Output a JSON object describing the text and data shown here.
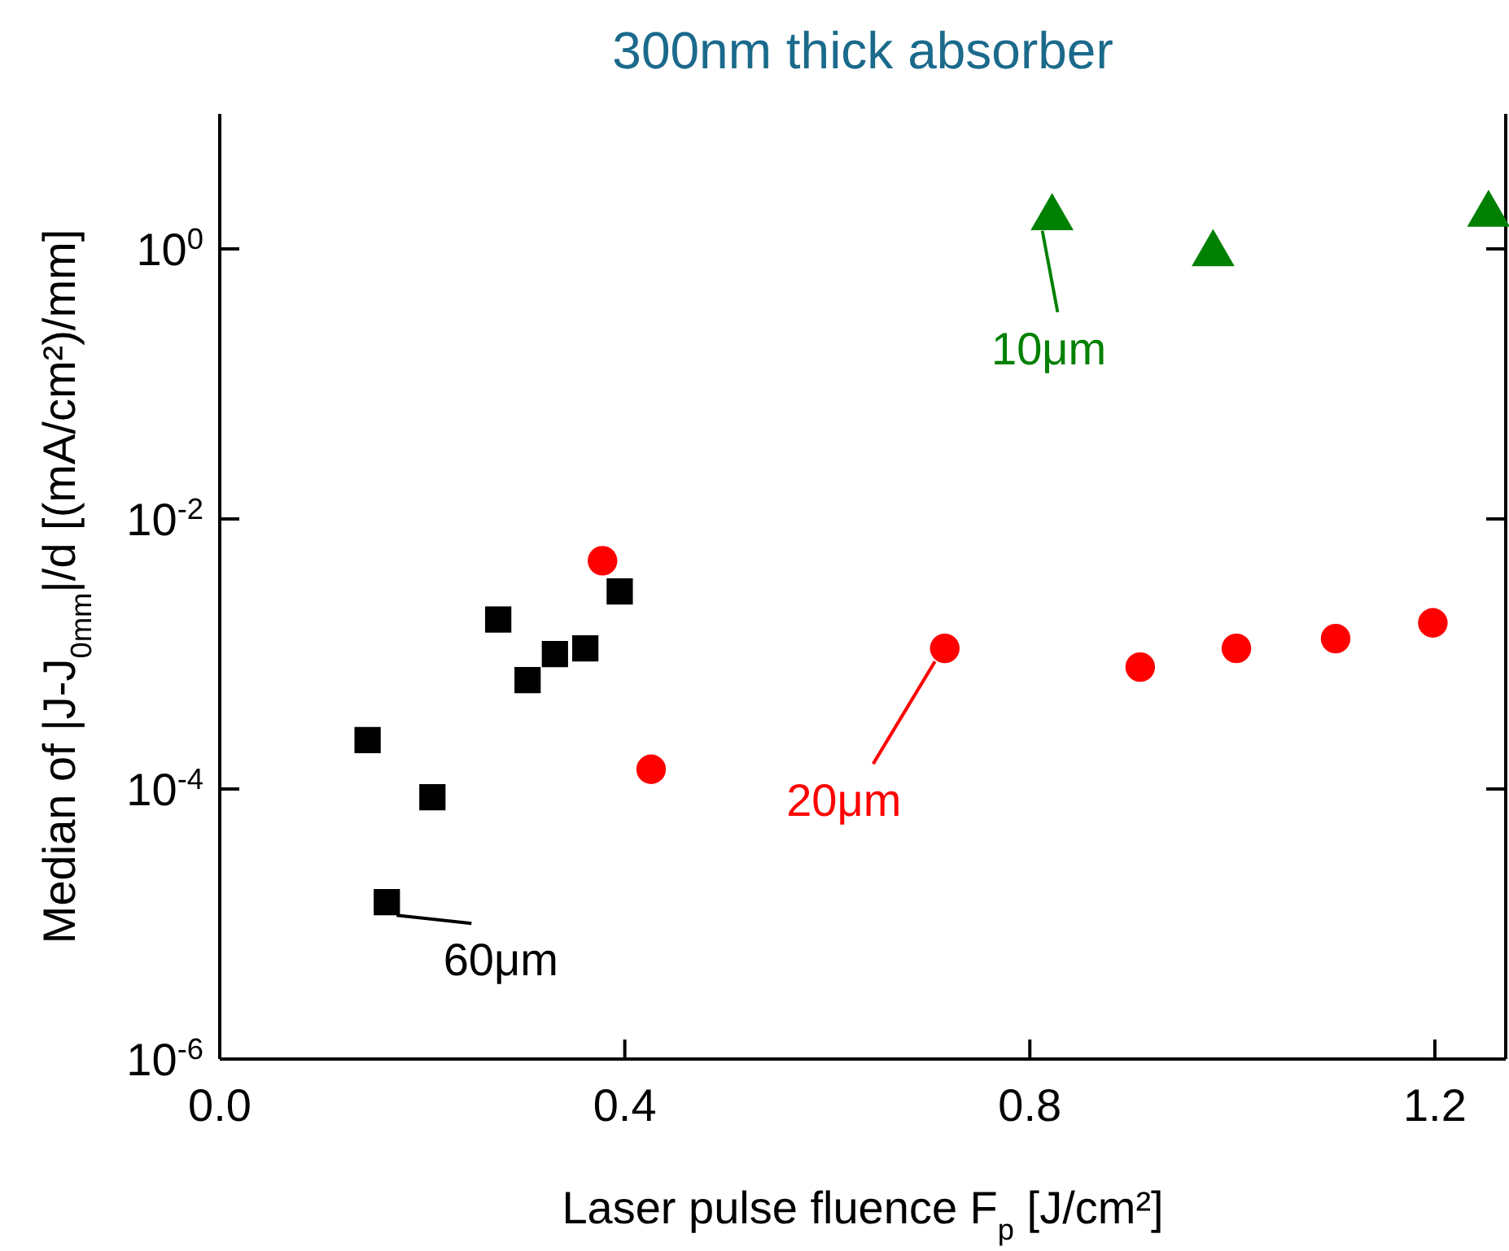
{
  "chart_data": {
    "type": "scatter",
    "title": "300nm thick absorber",
    "xlabel": "Laser pulse fluence F$_{p}$ [J/cm²]",
    "ylabel": "Median of |J-J$_{0mm}$|/d [(mA/cm²)/mm]",
    "log": "y",
    "xlim": [
      0,
      1.27
    ],
    "xticks": [
      {
        "value": 0,
        "label": "0.0"
      },
      {
        "value": 0.4,
        "label": "0.4"
      },
      {
        "value": 0.8,
        "label": "0.8"
      },
      {
        "value": 1.2,
        "label": "1.2"
      }
    ],
    "ylim": [
      1e-06,
      10
    ],
    "yticks": [
      {
        "value": 1e-06,
        "label": "10$^{-6}$"
      },
      {
        "value": 0.0001,
        "label": "10$^{-4}$"
      },
      {
        "value": 0.01,
        "label": "10$^{-2}$"
      },
      {
        "value": 1,
        "label": "10$^{0}$"
      }
    ],
    "grid": false,
    "series": [
      {
        "color": "#000000",
        "marker": "square",
        "x": [
          0.146,
          0.165,
          0.21,
          0.275,
          0.304,
          0.331,
          0.361,
          0.395
        ],
        "values": [
          0.00023,
          1.45e-05,
          8.7e-05,
          0.0018,
          0.00064,
          0.001,
          0.0011,
          0.0029
        ]
      },
      {
        "color": "#ff0000",
        "marker": "circle",
        "x": [
          0.378,
          0.426,
          0.716,
          0.909,
          1.004,
          1.102,
          1.198
        ],
        "values": [
          0.0049,
          0.00014,
          0.0011,
          0.0008,
          0.0011,
          0.0013,
          0.0017
        ]
      },
      {
        "color": "#008000",
        "marker": "triangle",
        "x": [
          0.822,
          0.981,
          1.253
        ],
        "values": [
          1.7,
          0.92,
          1.8
        ]
      }
    ],
    "annotations": [
      {
        "text": "60μm",
        "x": 0.165,
        "y": 1.45e-05
      },
      {
        "text": "20μm",
        "x": 0.716,
        "y": 0.0011
      },
      {
        "text": "10μm",
        "x": 0.822,
        "y": 1.7
      }
    ]
  }
}
